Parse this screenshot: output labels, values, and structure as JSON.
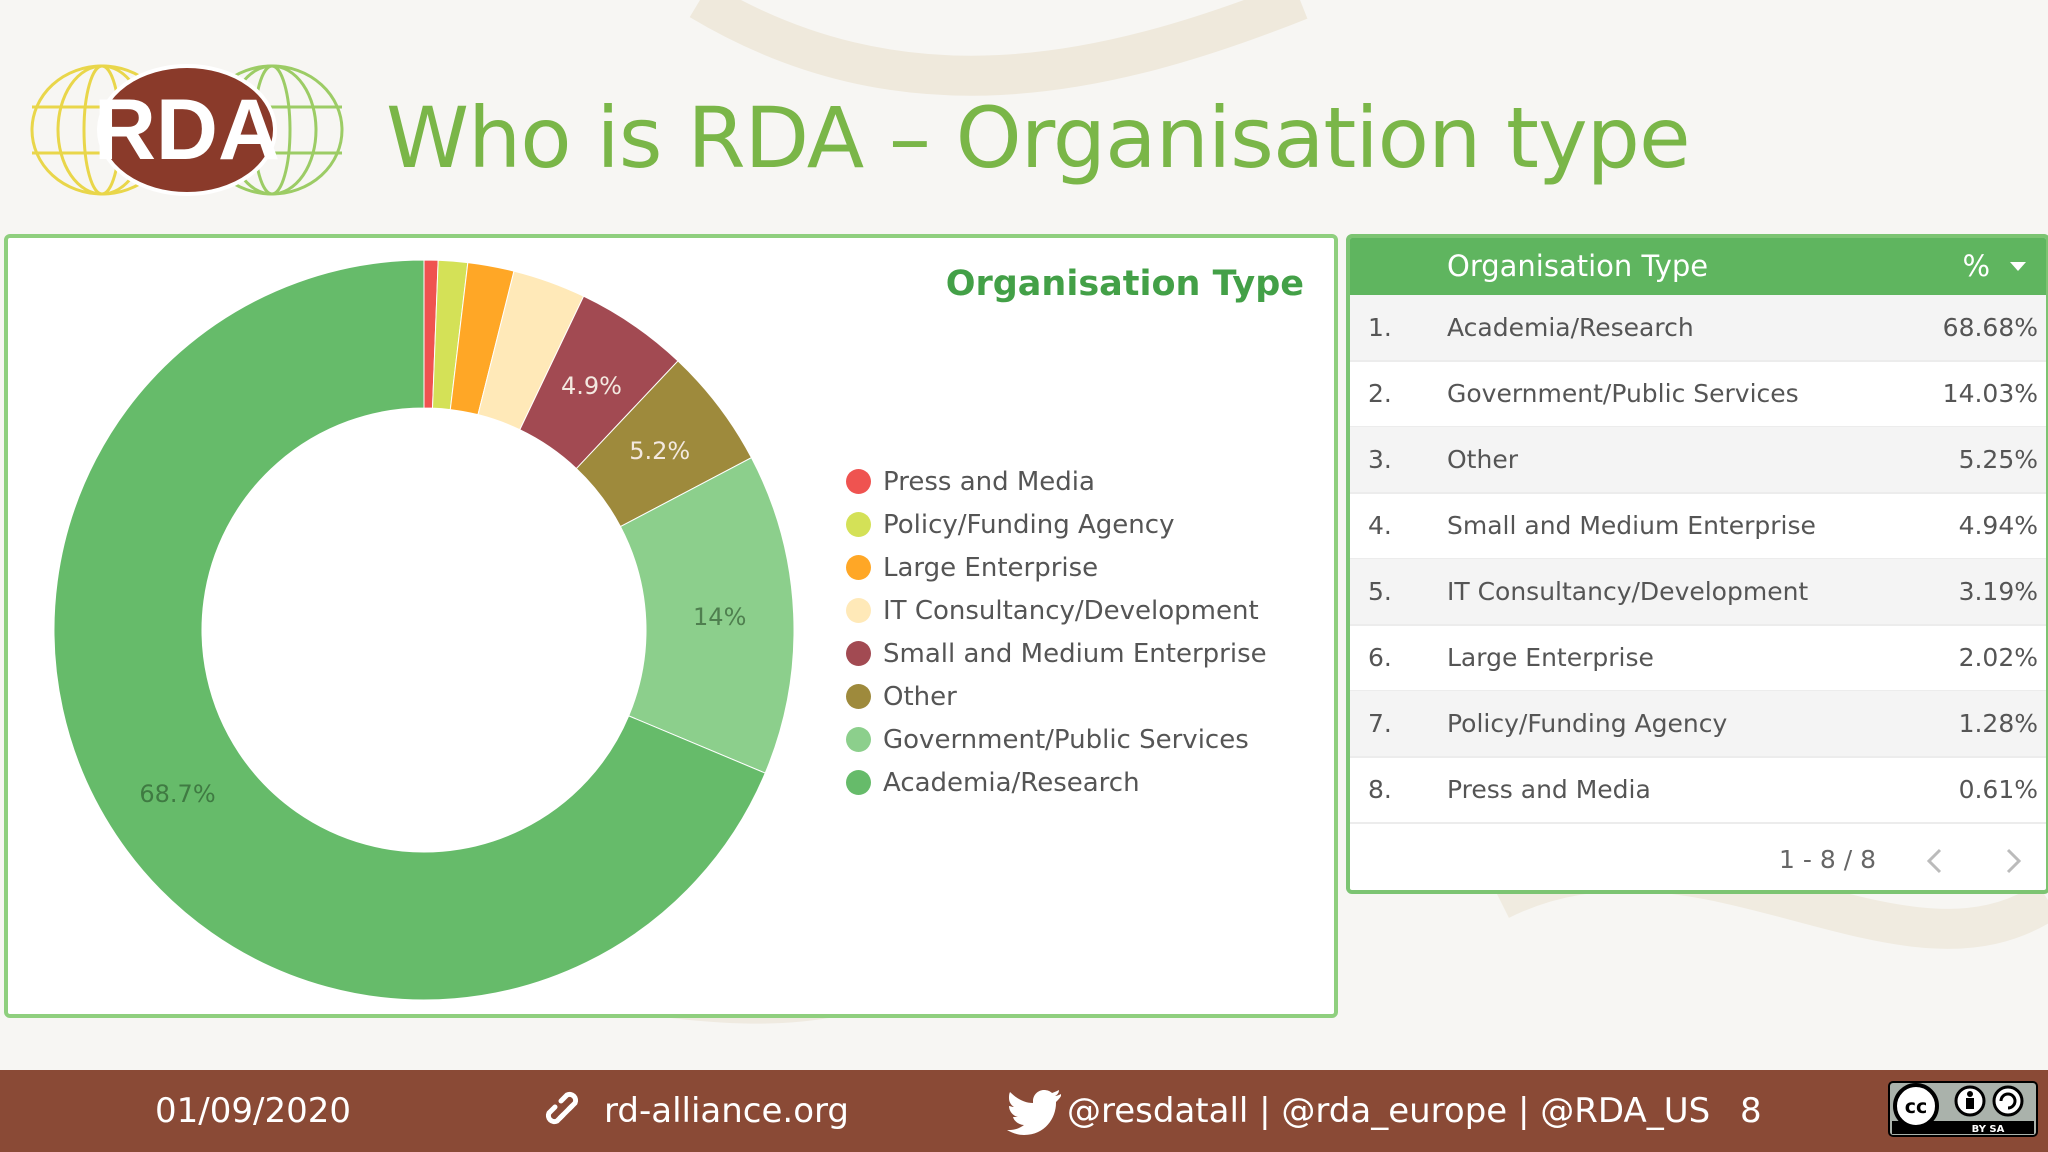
{
  "slide": {
    "logo_text": "RDA",
    "title": "Who is RDA – Organisation type"
  },
  "chart_panel": {
    "title": "Organisation Type"
  },
  "chart_data": {
    "type": "pie",
    "title": "Organisation Type",
    "categories": [
      "Press and Media",
      "Policy/Funding Agency",
      "Large Enterprise",
      "IT Consultancy/Development",
      "Small and Medium Enterprise",
      "Other",
      "Government/Public Services",
      "Academia/Research"
    ],
    "values": [
      0.61,
      1.28,
      2.02,
      3.19,
      4.94,
      5.25,
      14.03,
      68.68
    ],
    "colors": [
      "#ef5350",
      "#d4e157",
      "#ffa726",
      "#ffe9b8",
      "#a24a52",
      "#9e8a3c",
      "#8ccf8c",
      "#66bb6a"
    ],
    "slice_labels": [
      "",
      "",
      "",
      "",
      "4.9%",
      "5.2%",
      "14%",
      "68.7%"
    ],
    "legend_position": "right",
    "donut": true
  },
  "table": {
    "header_type": "Organisation Type",
    "header_pct": "%",
    "rows": [
      {
        "num": "1.",
        "name": "Academia/Research",
        "pct": "68.68%"
      },
      {
        "num": "2.",
        "name": "Government/Public Services",
        "pct": "14.03%"
      },
      {
        "num": "3.",
        "name": "Other",
        "pct": "5.25%"
      },
      {
        "num": "4.",
        "name": "Small and Medium Enterprise",
        "pct": "4.94%"
      },
      {
        "num": "5.",
        "name": "IT Consultancy/Development",
        "pct": "3.19%"
      },
      {
        "num": "6.",
        "name": "Large Enterprise",
        "pct": "2.02%"
      },
      {
        "num": "7.",
        "name": "Policy/Funding Agency",
        "pct": "1.28%"
      },
      {
        "num": "8.",
        "name": "Press and Media",
        "pct": "0.61%"
      }
    ],
    "pagination": "1 - 8 / 8"
  },
  "footer": {
    "date": "01/09/2020",
    "website": "rd-alliance.org",
    "twitter": "@resdatall | @rda_europe | @RDA_US",
    "page_number": "8",
    "license_text": "BY   SA"
  },
  "icons": {
    "link": "link-icon",
    "twitter": "twitter-bird-icon",
    "license": "cc-by-sa-icon"
  }
}
